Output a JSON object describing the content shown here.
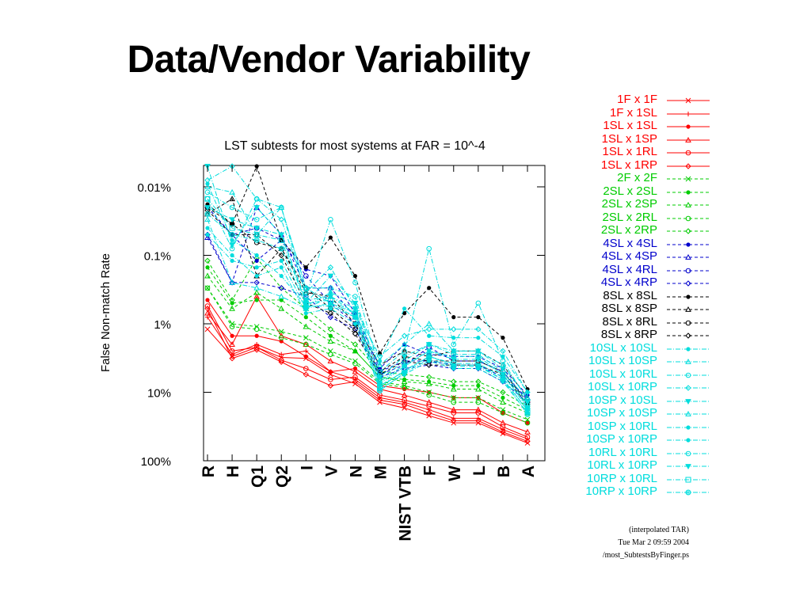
{
  "slide": {
    "title": "Data/Vendor Variability"
  },
  "chart_data": {
    "type": "line",
    "title": "LST subtests for most systems at FAR = 10^-4",
    "ylabel": "False Non-match Rate",
    "xlabel": "",
    "y_scale": "log",
    "y_inverted": true,
    "ylim": [
      0.005,
      100
    ],
    "y_ticks": [
      {
        "value": 0.01,
        "label": "0.01%"
      },
      {
        "value": 0.1,
        "label": "0.1%"
      },
      {
        "value": 1,
        "label": "1%"
      },
      {
        "value": 10,
        "label": "10%"
      },
      {
        "value": 100,
        "label": "100%"
      }
    ],
    "categories": [
      "R",
      "H",
      "Q1",
      "Q2",
      "I",
      "V",
      "N",
      "M",
      "NIST VTB",
      "F",
      "W",
      "L",
      "B",
      "A"
    ],
    "grid": false,
    "legend_position": "right-outside",
    "series": [
      {
        "name": "1F  x  1F",
        "color": "#ff0000",
        "dash": "solid",
        "marker": "x",
        "values": [
          1.2,
          3.0,
          2.2,
          3.1,
          3.2,
          5.5,
          7.5,
          14,
          17,
          22,
          28,
          28,
          40,
          55
        ]
      },
      {
        "name": "1F  x  1SL",
        "color": "#ff0000",
        "dash": "solid",
        "marker": "plus",
        "values": [
          0.8,
          2.8,
          2.0,
          2.8,
          2.5,
          5,
          6.5,
          12,
          14,
          18,
          24,
          24,
          35,
          48
        ]
      },
      {
        "name": "1SL x 1SL",
        "color": "#ff0000",
        "dash": "solid",
        "marker": "dot",
        "values": [
          0.45,
          1.5,
          1.5,
          1.8,
          3.0,
          5.0,
          4.5,
          8,
          9,
          10,
          12,
          12,
          20,
          28
        ]
      },
      {
        "name": "1SL x 1SP",
        "color": "#ff0000",
        "dash": "solid",
        "marker": "triangle",
        "values": [
          0.7,
          2.0,
          0.4,
          1.5,
          2.0,
          3.5,
          5,
          9,
          11,
          14,
          18,
          18,
          28,
          38
        ]
      },
      {
        "name": "1SL x 1RL",
        "color": "#ff0000",
        "dash": "solid",
        "marker": "circle",
        "values": [
          0.55,
          2.5,
          2.2,
          3.4,
          4.5,
          6.5,
          6.0,
          11,
          13,
          16,
          20,
          20,
          32,
          45
        ]
      },
      {
        "name": "1SL x 1RP",
        "color": "#ff0000",
        "dash": "solid",
        "marker": "diamond",
        "values": [
          0.6,
          3.2,
          2.4,
          3.6,
          5.5,
          8.0,
          7.0,
          13,
          15,
          20,
          26,
          26,
          38,
          52
        ]
      },
      {
        "name": "2F  x  2F",
        "color": "#00cc00",
        "dash": "dashed",
        "marker": "x",
        "values": [
          0.3,
          1.0,
          1.1,
          1.3,
          1.6,
          2.5,
          3.5,
          7,
          8,
          10,
          12,
          12,
          18,
          25
        ]
      },
      {
        "name": "2SL x 2SL",
        "color": "#00cc00",
        "dash": "dashed",
        "marker": "dot",
        "values": [
          0.15,
          0.5,
          0.45,
          0.45,
          0.8,
          1.5,
          2.5,
          6,
          6.5,
          7,
          8,
          8,
          12,
          18
        ]
      },
      {
        "name": "2SL x 2SP",
        "color": "#00cc00",
        "dash": "dashed",
        "marker": "triangle",
        "values": [
          0.2,
          0.6,
          0.35,
          0.6,
          1.1,
          1.8,
          2.5,
          6,
          7,
          7.5,
          9,
          9,
          14,
          20
        ]
      },
      {
        "name": "2SL x 2RL",
        "color": "#00cc00",
        "dash": "dashed",
        "marker": "circle",
        "values": [
          0.3,
          1.1,
          1.2,
          1.6,
          2.0,
          2.8,
          3.8,
          7.5,
          8.5,
          11,
          14,
          14,
          20,
          28
        ]
      },
      {
        "name": "2SL x 2RP",
        "color": "#00cc00",
        "dash": "dashed",
        "marker": "diamond",
        "values": [
          0.12,
          0.45,
          0.11,
          0.3,
          0.6,
          1.2,
          2.0,
          5,
          5.5,
          6,
          7,
          7,
          10,
          16
        ]
      },
      {
        "name": "4SL x 4SL",
        "color": "#0000cc",
        "dash": "dashed",
        "marker": "dot",
        "values": [
          0.02,
          0.05,
          0.12,
          0.06,
          0.16,
          0.2,
          0.7,
          4.5,
          2.0,
          2.8,
          3.0,
          3.0,
          4.5,
          11
        ]
      },
      {
        "name": "4SL x 4SP",
        "color": "#0000cc",
        "dash": "dashed",
        "marker": "triangle",
        "values": [
          0.055,
          0.25,
          0.02,
          0.05,
          0.3,
          0.3,
          0.8,
          5,
          3.5,
          3.5,
          4,
          4,
          6,
          12
        ]
      },
      {
        "name": "4SL x 4RL",
        "color": "#0000cc",
        "dash": "dashed",
        "marker": "circle",
        "values": [
          0.02,
          0.05,
          0.04,
          0.06,
          0.2,
          0.5,
          1.0,
          5.5,
          4.0,
          2.2,
          3.5,
          3.5,
          5,
          13
        ]
      },
      {
        "name": "4SL x 4RP",
        "color": "#0000cc",
        "dash": "dashed",
        "marker": "diamond",
        "values": [
          0.05,
          0.25,
          0.25,
          0.3,
          0.4,
          0.8,
          1.2,
          6,
          4.5,
          4.0,
          4.5,
          4.5,
          7,
          14
        ]
      },
      {
        "name": "8SL x 8SL",
        "color": "#000000",
        "dash": "dashed",
        "marker": "dot",
        "values": [
          0.018,
          0.035,
          0.005,
          0.06,
          0.15,
          0.055,
          0.2,
          2.7,
          0.7,
          0.3,
          0.8,
          0.8,
          1.6,
          9
        ]
      },
      {
        "name": "8SL x 8SP",
        "color": "#000000",
        "dash": "dashed",
        "marker": "triangle",
        "values": [
          0.025,
          0.015,
          0.2,
          0.08,
          0.35,
          0.4,
          1.0,
          4.0,
          2.5,
          3.0,
          2.5,
          2.5,
          4.0,
          12
        ]
      },
      {
        "name": "8SL x 8RL",
        "color": "#000000",
        "dash": "dashed",
        "marker": "circle",
        "values": [
          0.02,
          0.035,
          0.065,
          0.08,
          0.3,
          0.6,
          1.2,
          5.0,
          3.0,
          3.5,
          3.5,
          3.5,
          5.0,
          14
        ]
      },
      {
        "name": "8SL x 8RP",
        "color": "#000000",
        "dash": "dashed",
        "marker": "diamond",
        "values": [
          0.022,
          0.05,
          0.05,
          0.1,
          0.5,
          0.7,
          1.4,
          5.5,
          3.5,
          4.0,
          4.0,
          4.0,
          5.5,
          15
        ]
      },
      {
        "name": "10SL x 10SL",
        "color": "#00dddd",
        "dash": "dashdot",
        "marker": "dot",
        "values": [
          0.009,
          0.06,
          0.1,
          0.2,
          0.55,
          0.35,
          0.5,
          3.5,
          0.6,
          1.5,
          1.6,
          1.6,
          3.0,
          10
        ]
      },
      {
        "name": "10SL x 10SP",
        "color": "#00dddd",
        "dash": "dashdot",
        "marker": "triangle",
        "values": [
          0.01,
          0.012,
          0.05,
          0.02,
          0.3,
          0.5,
          0.7,
          4.0,
          2.0,
          1.0,
          2.5,
          2.5,
          4.0,
          12
        ]
      },
      {
        "name": "10SL x 10RL",
        "color": "#00dddd",
        "dash": "dashdot",
        "marker": "circle",
        "values": [
          0.015,
          0.08,
          0.015,
          0.02,
          0.4,
          0.03,
          0.25,
          5.0,
          2.5,
          0.08,
          2.0,
          0.5,
          3.5,
          13
        ]
      },
      {
        "name": "10SL x 10RP",
        "color": "#00dddd",
        "dash": "dashdot",
        "marker": "diamond",
        "values": [
          0.008,
          0.005,
          0.015,
          0.03,
          0.35,
          0.15,
          0.6,
          3.0,
          1.5,
          1.2,
          1.2,
          1.2,
          2.5,
          10
        ]
      },
      {
        "name": "10SP x 10SL",
        "color": "#00dddd",
        "dash": "dashdot",
        "marker": "triangle-down",
        "values": [
          0.005,
          0.07,
          0.02,
          0.05,
          0.5,
          0.2,
          0.5,
          6,
          3,
          2.0,
          2.5,
          2.5,
          4.5,
          14
        ]
      },
      {
        "name": "10SP x 10SP",
        "color": "#00dddd",
        "dash": "dashdot",
        "marker": "triangle",
        "values": [
          0.03,
          0.25,
          0.3,
          0.4,
          0.6,
          0.4,
          0.7,
          7,
          4,
          2.5,
          3,
          3,
          5.5,
          16
        ]
      },
      {
        "name": "10SP x 10RL",
        "color": "#00dddd",
        "dash": "dashdot",
        "marker": "dot",
        "values": [
          0.05,
          0.12,
          0.15,
          0.12,
          0.6,
          0.5,
          0.8,
          8,
          5,
          3.0,
          4,
          4,
          6.5,
          18
        ]
      },
      {
        "name": "10SP x 10RP",
        "color": "#00dddd",
        "dash": "dashdot",
        "marker": "dot",
        "values": [
          0.04,
          0.1,
          0.2,
          0.15,
          0.7,
          0.6,
          1.0,
          9,
          5.5,
          3.5,
          4.5,
          4.5,
          7,
          20
        ]
      },
      {
        "name": "10RL x 10RL",
        "color": "#00dddd",
        "dash": "dashdot",
        "marker": "circle",
        "values": [
          0.012,
          0.02,
          0.03,
          0.02,
          0.3,
          0.3,
          0.4,
          6.5,
          3.5,
          2.0,
          2.8,
          2.8,
          5.0,
          15
        ]
      },
      {
        "name": "10RL x 10RP",
        "color": "#00dddd",
        "dash": "dashdot",
        "marker": "triangle-down",
        "values": [
          0.02,
          0.03,
          0.04,
          0.05,
          0.45,
          0.4,
          0.6,
          7.5,
          4.2,
          2.5,
          3.3,
          3.3,
          5.5,
          17
        ]
      },
      {
        "name": "10RP x 10RL",
        "color": "#00dddd",
        "dash": "dashdot",
        "marker": "square",
        "values": [
          0.015,
          0.04,
          0.05,
          0.06,
          0.5,
          0.45,
          0.7,
          8.5,
          4.8,
          3.0,
          3.8,
          3.8,
          6.0,
          19
        ]
      },
      {
        "name": "10RP x 10RP",
        "color": "#00dddd",
        "dash": "dashdot",
        "marker": "circle-dot",
        "values": [
          0.025,
          0.05,
          0.06,
          0.08,
          0.55,
          0.55,
          0.8,
          9.5,
          5.2,
          3.3,
          4.2,
          4.2,
          6.5,
          21
        ]
      }
    ]
  },
  "footer": {
    "line1": "(interpolated TAR)",
    "line2": "Tue Mar  2 09:59 2004",
    "line3": "/most_SubtestsByFinger.ps"
  }
}
